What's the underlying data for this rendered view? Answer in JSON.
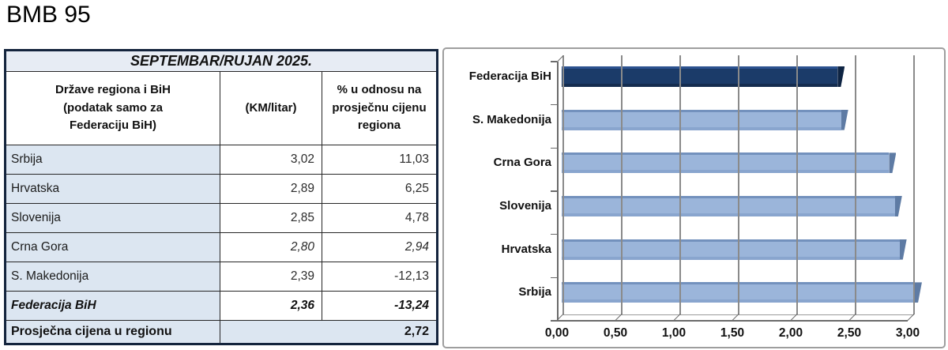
{
  "page_title": "BMB 95",
  "table": {
    "title": "SEPTEMBAR/RUJAN 2025.",
    "header": {
      "col1_lines": [
        "Države regiona i BiH",
        "(podatak samo za",
        "Federaciju BiH)"
      ],
      "col2": "(KM/litar)",
      "col3_lines": [
        "% u odnosu na",
        "prosječnu cijenu",
        "regiona"
      ]
    },
    "rows": [
      {
        "label": "Srbija",
        "km_litar": "3,02",
        "pct": "11,03",
        "style": "normal"
      },
      {
        "label": "Hrvatska",
        "km_litar": "2,89",
        "pct": "6,25",
        "style": "normal"
      },
      {
        "label": "Slovenija",
        "km_litar": "2,85",
        "pct": "4,78",
        "style": "normal"
      },
      {
        "label": "Crna Gora",
        "km_litar": "2,80",
        "pct": "2,94",
        "style": "italic-values"
      },
      {
        "label": "S. Makedonija",
        "km_litar": "2,39",
        "pct": "-12,13",
        "style": "normal"
      },
      {
        "label": "Federacija BiH",
        "km_litar": "2,36",
        "pct": "-13,24",
        "style": "bold-italic"
      }
    ],
    "footer": {
      "label": "Prosječna cijena u regionu",
      "value": "2,72"
    }
  },
  "chart_data": {
    "type": "bar",
    "orientation": "horizontal",
    "title": "",
    "categories": [
      "Federacija BiH",
      "S. Makedonija",
      "Crna Gora",
      "Slovenija",
      "Hrvatska",
      "Srbija"
    ],
    "values": [
      2.36,
      2.39,
      2.8,
      2.85,
      2.89,
      3.02
    ],
    "x_tick_labels": [
      "0,00",
      "0,50",
      "1,00",
      "1,50",
      "2,00",
      "2,50",
      "3,00"
    ],
    "xlim": [
      0,
      3.05
    ],
    "grid": true,
    "legend": false,
    "highlight_index": 0,
    "colors": {
      "bar": "#9BB5DA",
      "bar_top": "#7391BD",
      "bar_bottom": "#89A5CE",
      "bar_cap": "#5E7BA4",
      "highlight": "#1B3B69",
      "highlight_top": "#2D5390",
      "highlight_bottom": "#142C4F",
      "highlight_cap": "#0E2443"
    }
  },
  "colors": {
    "table_title_bg": "#E7ECF4",
    "table_cell_bg": "#DCE6F1",
    "border_dark": "#14243d",
    "axis_gray": "#6b6b6b"
  }
}
